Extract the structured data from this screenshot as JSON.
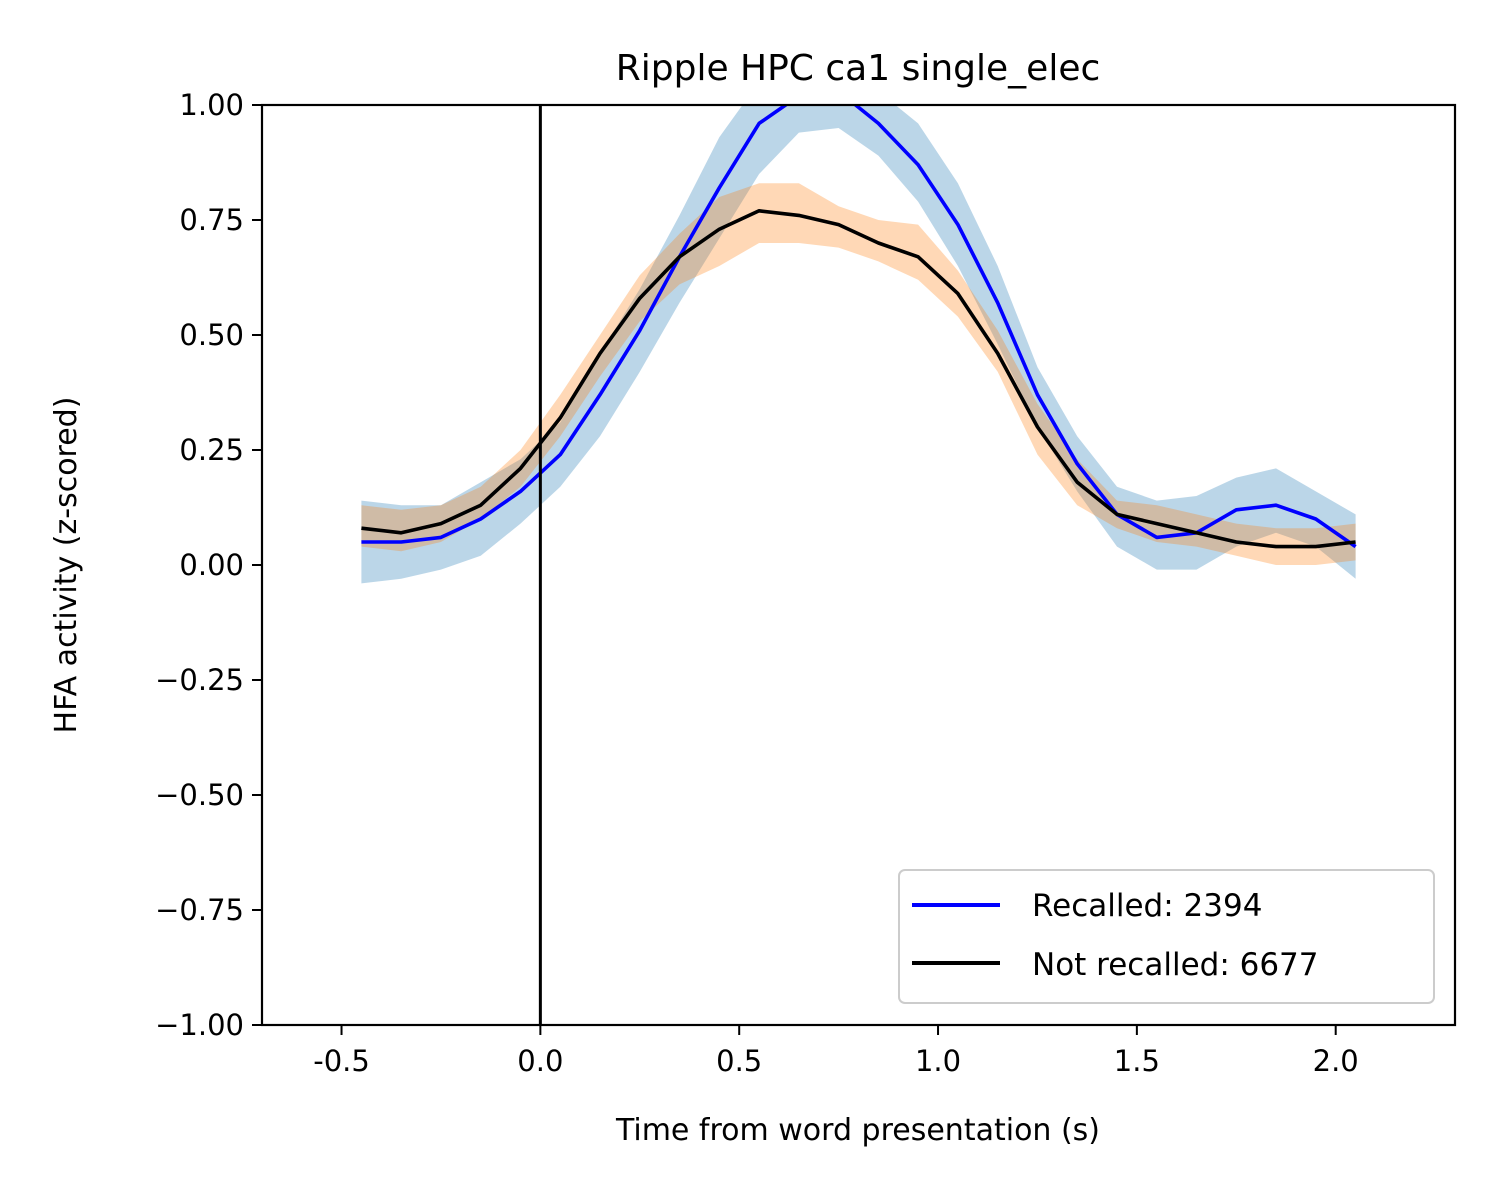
{
  "chart_data": {
    "type": "line",
    "title": "Ripple HPC ca1 single_elec",
    "xlabel": "Time from word presentation (s)",
    "ylabel": "HFA activity (z-scored)",
    "xlim": [
      -0.7,
      2.3
    ],
    "ylim": [
      -1.0,
      1.0
    ],
    "xticks": [
      -0.5,
      0.0,
      0.5,
      1.0,
      1.5,
      2.0
    ],
    "xtick_labels": [
      "-0.5",
      "0.0",
      "0.5",
      "1.0",
      "1.5",
      "2.0"
    ],
    "yticks": [
      -1.0,
      -0.75,
      -0.5,
      -0.25,
      0.0,
      0.25,
      0.5,
      0.75,
      1.0
    ],
    "ytick_labels": [
      "−1.00",
      "−0.75",
      "−0.50",
      "−0.25",
      "0.00",
      "0.25",
      "0.50",
      "0.75",
      "1.00"
    ],
    "grid": false,
    "legend_position": "lower-right",
    "vline_x": 0.0,
    "vline_color": "#000000",
    "x": [
      -0.45,
      -0.35,
      -0.25,
      -0.15,
      -0.05,
      0.05,
      0.15,
      0.25,
      0.35,
      0.45,
      0.55,
      0.65,
      0.75,
      0.85,
      0.95,
      1.05,
      1.15,
      1.25,
      1.35,
      1.45,
      1.55,
      1.65,
      1.75,
      1.85,
      1.95,
      2.05
    ],
    "series": [
      {
        "name": "Recalled: 2394",
        "line_color": "#0000ff",
        "band_color": "#1f77b4",
        "band_opacity": 0.3,
        "values": [
          0.05,
          0.05,
          0.06,
          0.1,
          0.16,
          0.24,
          0.37,
          0.51,
          0.67,
          0.82,
          0.96,
          1.02,
          1.03,
          0.96,
          0.87,
          0.74,
          0.57,
          0.37,
          0.22,
          0.11,
          0.06,
          0.07,
          0.12,
          0.13,
          0.1,
          0.04
        ],
        "lower": [
          -0.04,
          -0.03,
          -0.01,
          0.02,
          0.09,
          0.17,
          0.28,
          0.42,
          0.57,
          0.71,
          0.85,
          0.94,
          0.95,
          0.89,
          0.79,
          0.65,
          0.48,
          0.3,
          0.16,
          0.04,
          -0.01,
          -0.01,
          0.04,
          0.07,
          0.04,
          -0.03
        ],
        "upper": [
          0.14,
          0.13,
          0.13,
          0.18,
          0.23,
          0.31,
          0.46,
          0.6,
          0.76,
          0.93,
          1.05,
          1.1,
          1.1,
          1.03,
          0.96,
          0.83,
          0.65,
          0.43,
          0.28,
          0.17,
          0.14,
          0.15,
          0.19,
          0.21,
          0.16,
          0.11
        ]
      },
      {
        "name": "Not recalled: 6677",
        "line_color": "#000000",
        "band_color": "#ff7f0e",
        "band_opacity": 0.3,
        "values": [
          0.08,
          0.07,
          0.09,
          0.13,
          0.21,
          0.32,
          0.46,
          0.58,
          0.67,
          0.73,
          0.77,
          0.76,
          0.74,
          0.7,
          0.67,
          0.59,
          0.46,
          0.3,
          0.18,
          0.11,
          0.09,
          0.07,
          0.05,
          0.04,
          0.04,
          0.05
        ],
        "lower": [
          0.04,
          0.03,
          0.05,
          0.1,
          0.17,
          0.28,
          0.41,
          0.53,
          0.61,
          0.65,
          0.7,
          0.7,
          0.69,
          0.66,
          0.62,
          0.54,
          0.42,
          0.24,
          0.13,
          0.08,
          0.05,
          0.04,
          0.02,
          0.0,
          0.0,
          0.01
        ],
        "upper": [
          0.13,
          0.12,
          0.13,
          0.17,
          0.25,
          0.37,
          0.5,
          0.63,
          0.72,
          0.8,
          0.83,
          0.83,
          0.78,
          0.75,
          0.74,
          0.64,
          0.51,
          0.35,
          0.23,
          0.14,
          0.13,
          0.11,
          0.09,
          0.08,
          0.08,
          0.09
        ]
      }
    ]
  }
}
